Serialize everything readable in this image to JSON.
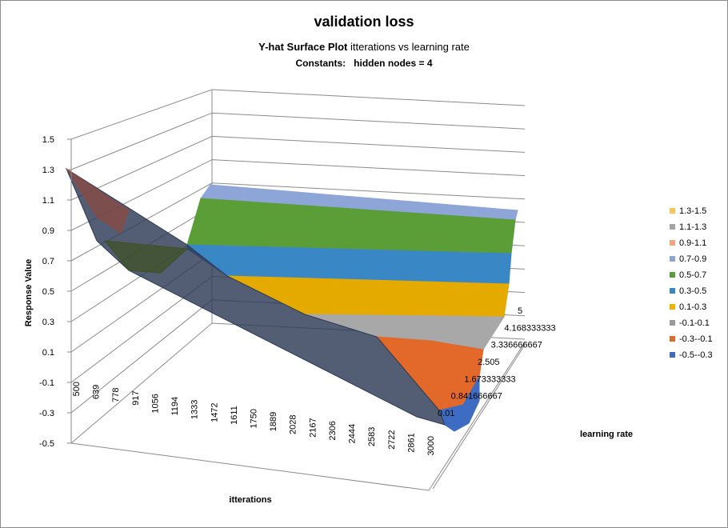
{
  "chart_data": {
    "type": "surface",
    "title": "validation loss",
    "subtitle_bold": "Y-hat Surface Plot",
    "subtitle_rest": " itterations vs learning rate",
    "constants": "Constants:   hidden nodes = 4",
    "zlabel": "Response Value",
    "xlabel": "itterations",
    "ylabel": "learning rate",
    "z_ticks": [
      "1.5",
      "1.3",
      "1.1",
      "0.9",
      "0.7",
      "0.5",
      "0.3",
      "0.1",
      "-0.1",
      "-0.3",
      "-0.5"
    ],
    "x_ticks": [
      "500",
      "639",
      "778",
      "917",
      "1056",
      "1194",
      "1333",
      "1472",
      "1611",
      "1750",
      "1889",
      "2028",
      "2167",
      "2306",
      "2444",
      "2583",
      "2722",
      "2861",
      "3000"
    ],
    "y_ticks": [
      "5",
      "4.168333333",
      "3.336666667",
      "2.505",
      "1.673333333",
      "0.841666667",
      "0.01"
    ],
    "zlim": [
      -0.5,
      1.5
    ],
    "legend": [
      {
        "label": "1.3-1.5",
        "color": "#f9c45a"
      },
      {
        "label": "1.1-1.3",
        "color": "#a5a5a5"
      },
      {
        "label": "0.9-1.1",
        "color": "#f4a57c"
      },
      {
        "label": "0.7-0.9",
        "color": "#8ea5d8"
      },
      {
        "label": "0.5-0.7",
        "color": "#5b9e38"
      },
      {
        "label": "0.3-0.5",
        "color": "#3a87c6"
      },
      {
        "label": "0.1-0.3",
        "color": "#f2b300"
      },
      {
        "label": "-0.1-0.1",
        "color": "#9a9a9a"
      },
      {
        "label": "-0.3--0.1",
        "color": "#e2692a"
      },
      {
        "label": "-0.5--0.3",
        "color": "#3e6cc2"
      }
    ],
    "series_colors": {
      "back_band_top": "#8ea5d8",
      "band_0_5_0_7": "#5b9e38",
      "band_0_3_0_5": "#3a87c6",
      "band_0_1_0_3": "#e5aa00",
      "band_m0_1_0_1": "#a8a8a8",
      "band_m0_3_m0_1": "#e2692a",
      "band_m0_5_m0_3": "#3e6cc2",
      "front_face": "#2d3a55"
    },
    "grid": true
  }
}
